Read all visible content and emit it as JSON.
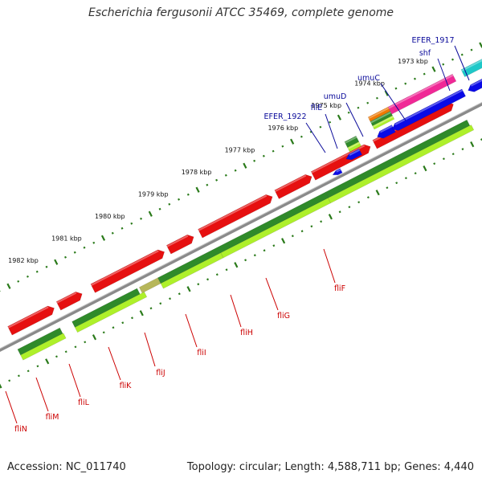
{
  "title": "Escherichia fergusonii ATCC 35469, complete genome",
  "footer": {
    "accession": "Accession: NC_011740",
    "summary": "Topology: circular; Length: 4,588,711 bp; Genes: 4,440"
  },
  "colors": {
    "background": "#ffffff",
    "backbone": "#8a8a8a",
    "tick": "#2a7a1a",
    "cds_forward": "#e61010",
    "cds_reverse": "#0a0ae6",
    "gene_dark": "#2f8a2a",
    "gene_light": "#aef02a",
    "pink": "#f02896",
    "cyan": "#1ec8c8",
    "orange": "#f07800",
    "label_blue": "#0a0a9a",
    "label_red": "#cc0000"
  },
  "scale_labels": [
    "1973 kbp",
    "1974 kbp",
    "1975 kbp",
    "1976 kbp",
    "1977 kbp",
    "1978 kbp",
    "1979 kbp",
    "1980 kbp",
    "1981 kbp",
    "1982 kbp"
  ],
  "genes": [
    {
      "name": "EFER_1917",
      "strand": "upper",
      "color": "label_blue"
    },
    {
      "name": "shf",
      "strand": "upper",
      "color": "label_blue"
    },
    {
      "name": "umuC",
      "strand": "upper",
      "color": "label_blue"
    },
    {
      "name": "umuD",
      "strand": "upper",
      "color": "label_blue"
    },
    {
      "name": "fliE",
      "strand": "upper",
      "color": "label_blue"
    },
    {
      "name": "EFER_1922",
      "strand": "upper",
      "color": "label_blue"
    },
    {
      "name": "fliF",
      "strand": "lower",
      "color": "label_red"
    },
    {
      "name": "fliG",
      "strand": "lower",
      "color": "label_red"
    },
    {
      "name": "fliH",
      "strand": "lower",
      "color": "label_red"
    },
    {
      "name": "fliI",
      "strand": "lower",
      "color": "label_red"
    },
    {
      "name": "fliJ",
      "strand": "lower",
      "color": "label_red"
    },
    {
      "name": "fliK",
      "strand": "lower",
      "color": "label_red"
    },
    {
      "name": "fliL",
      "strand": "lower",
      "color": "label_red"
    },
    {
      "name": "fliM",
      "strand": "lower",
      "color": "label_red"
    },
    {
      "name": "fliN",
      "strand": "lower",
      "color": "label_red"
    }
  ]
}
